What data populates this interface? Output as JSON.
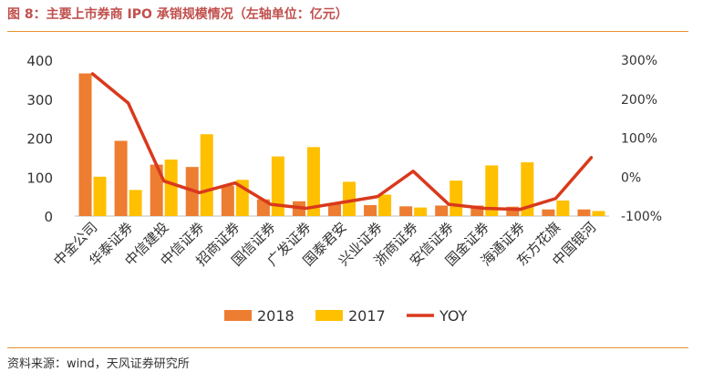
{
  "header": {
    "title": "图 8：主要上市券商 IPO 承销规模情况（左轴单位：亿元）"
  },
  "footer": {
    "source": "资料来源：wind，天风证券研究所"
  },
  "colors": {
    "series_2018": "#ed7d31",
    "series_2017": "#ffc000",
    "yoy": "#d9391c",
    "title": "#c0504d",
    "rule": "#e8932e"
  },
  "chart_data": {
    "type": "bar",
    "categories": [
      "中金公司",
      "华泰证券",
      "中信建投",
      "中信证券",
      "招商证券",
      "国信证券",
      "广发证券",
      "国泰君安",
      "兴业证券",
      "浙商证券",
      "安信证券",
      "国金证券",
      "海通证券",
      "东方花旗",
      "中国银河"
    ],
    "series": [
      {
        "name": "2018",
        "type": "bar",
        "axis": "left",
        "color": "#ed7d31",
        "values": [
          366,
          193,
          132,
          126,
          78,
          43,
          38,
          31,
          28,
          25,
          27,
          27,
          24,
          17,
          17
        ]
      },
      {
        "name": "2017",
        "type": "bar",
        "axis": "left",
        "color": "#ffc000",
        "values": [
          101,
          67,
          145,
          210,
          93,
          153,
          177,
          88,
          55,
          22,
          91,
          130,
          138,
          40,
          13
        ]
      },
      {
        "name": "YOY",
        "type": "line",
        "axis": "right",
        "color": "#d9391c",
        "values": [
          265,
          190,
          -10,
          -40,
          -15,
          -70,
          -80,
          -65,
          -50,
          15,
          -70,
          -80,
          -83,
          -55,
          50
        ]
      }
    ],
    "y_left": {
      "min": 0,
      "max": 400,
      "ticks": [
        "0",
        "100",
        "200",
        "300",
        "400"
      ],
      "tick_values": [
        0,
        100,
        200,
        300,
        400
      ]
    },
    "y_right": {
      "min": -100,
      "max": 300,
      "ticks": [
        "-100%",
        "0%",
        "100%",
        "200%",
        "300%"
      ],
      "tick_values": [
        -100,
        0,
        100,
        200,
        300
      ]
    },
    "legend": {
      "position": "bottom",
      "items": [
        "2018",
        "2017",
        "YOY"
      ]
    },
    "grid": false
  }
}
